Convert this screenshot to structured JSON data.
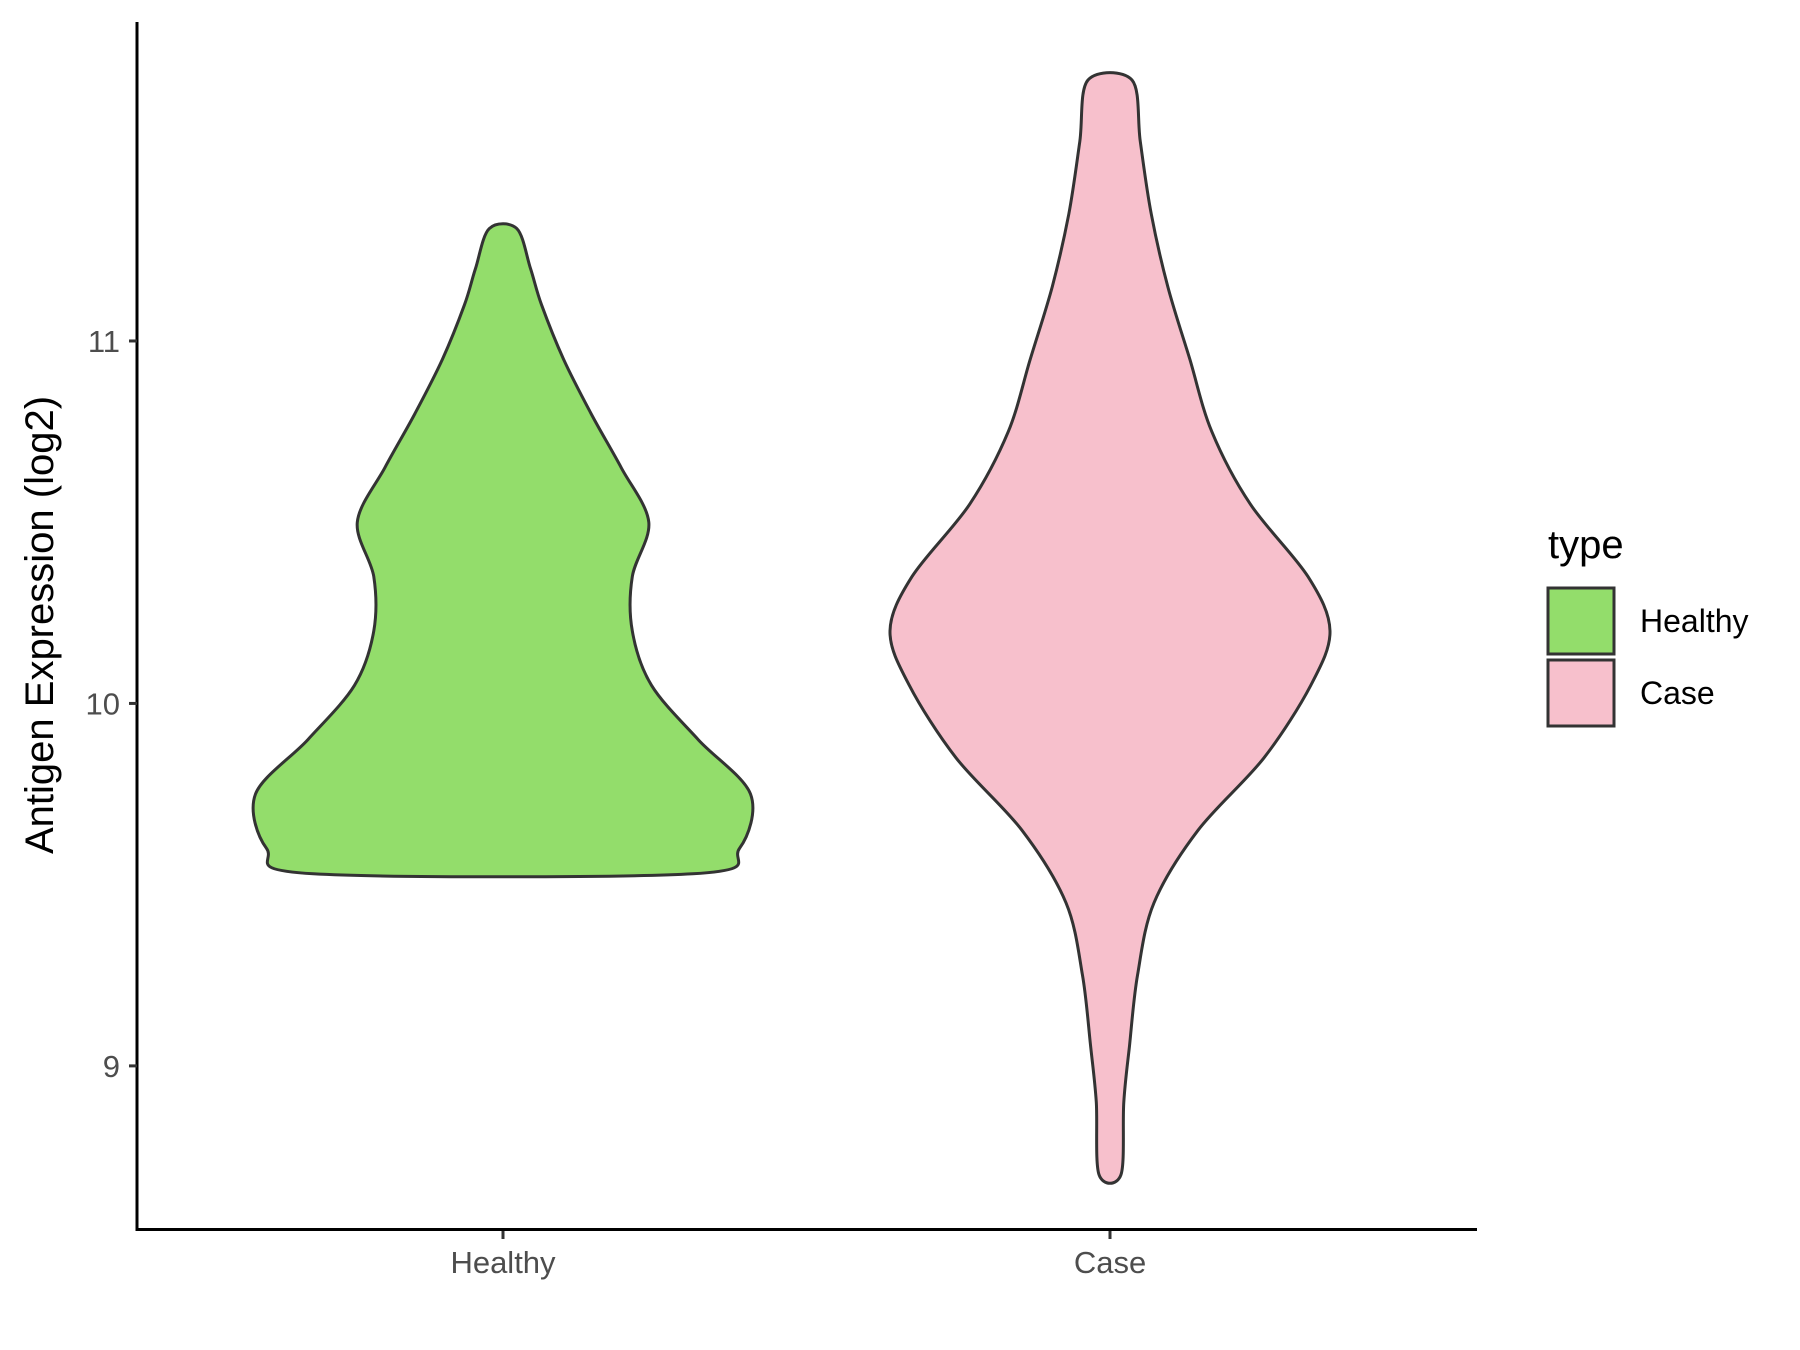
{
  "chart_data": {
    "type": "violin",
    "xlabel": "",
    "ylabel": "Antigen Expression (log2)",
    "categories": [
      "Healthy",
      "Case"
    ],
    "ylim": [
      8.55,
      11.88
    ],
    "yticks": [
      9,
      10,
      11
    ],
    "grid": false,
    "legend": {
      "title": "type",
      "placement": "right",
      "entries": [
        {
          "label": "Healthy",
          "color": "#93DD6B"
        },
        {
          "label": "Case",
          "color": "#F7C0CC"
        }
      ]
    },
    "series": [
      {
        "name": "Healthy",
        "color": "#93DD6B",
        "ymin": 9.53,
        "ymax": 11.31,
        "density": [
          [
            9.53,
            0.69
          ],
          [
            9.6,
            0.86
          ],
          [
            9.75,
            0.9
          ],
          [
            9.9,
            0.71
          ],
          [
            10.05,
            0.54
          ],
          [
            10.2,
            0.47
          ],
          [
            10.35,
            0.47
          ],
          [
            10.5,
            0.53
          ],
          [
            10.65,
            0.43
          ],
          [
            10.8,
            0.32
          ],
          [
            10.95,
            0.22
          ],
          [
            11.1,
            0.14
          ],
          [
            11.2,
            0.1
          ],
          [
            11.31,
            0.05
          ]
        ]
      },
      {
        "name": "Case",
        "color": "#F7C0CC",
        "ymin": 8.7,
        "ymax": 11.72,
        "density": [
          [
            8.7,
            0.04
          ],
          [
            8.9,
            0.05
          ],
          [
            9.05,
            0.07
          ],
          [
            9.25,
            0.1
          ],
          [
            9.45,
            0.16
          ],
          [
            9.65,
            0.32
          ],
          [
            9.85,
            0.56
          ],
          [
            10.05,
            0.73
          ],
          [
            10.2,
            0.8
          ],
          [
            10.35,
            0.72
          ],
          [
            10.55,
            0.51
          ],
          [
            10.75,
            0.37
          ],
          [
            10.95,
            0.29
          ],
          [
            11.15,
            0.21
          ],
          [
            11.35,
            0.15
          ],
          [
            11.55,
            0.11
          ],
          [
            11.72,
            0.08
          ]
        ]
      }
    ]
  }
}
